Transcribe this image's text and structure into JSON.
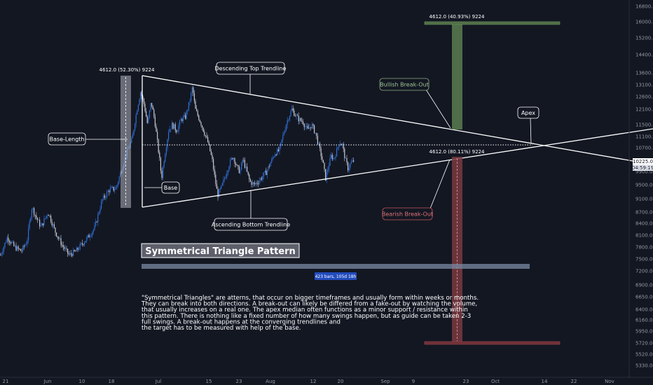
{
  "chart_data": {
    "type": "candlestick",
    "title": "Symmetrical Triangle Pattern",
    "y_ticks": [
      16800,
      16000,
      15200,
      14400,
      13600,
      13100,
      12600,
      12100,
      11500,
      11100,
      10700,
      9900,
      9500,
      9100,
      8700,
      8400,
      8100,
      7800,
      7500,
      7200,
      6900,
      6650,
      6400,
      6160,
      5950,
      5720,
      5520,
      5330
    ],
    "y_tick_labels": [
      "16800.0",
      "16000.0",
      "15200.0",
      "14400.0",
      "13600.0",
      "13100.0",
      "12600.0",
      "12100.0",
      "11500.0",
      "11100.0",
      "10700.0",
      "9900.0",
      "9500.0",
      "9100.0",
      "8700.0",
      "8400.0",
      "8100.0",
      "7800.0",
      "7500.0",
      "7200.0",
      "6900.0",
      "6650.0",
      "6400.0",
      "6160.0",
      "5950.0",
      "5720.0",
      "5520.0",
      "5330.0"
    ],
    "ylim": [
      5150,
      17100
    ],
    "x_tick_labels": [
      "21",
      "Jun",
      "10",
      "18",
      "Jul",
      "15",
      "23",
      "Aug",
      "12",
      "20",
      "Sep",
      "9",
      "23",
      "Oct",
      "14",
      "22",
      "Nov"
    ],
    "last_price": "10225.0",
    "countdown": "04:59:19",
    "annotations": {
      "base_length": "Base-Length",
      "base": "Base",
      "descending_top": "Descending Top Trendline",
      "ascending_bottom": "Ascending Bottom Trendline",
      "bullish_breakout": "Bullish Break-Out",
      "bearish_breakout": "Bearish Break-Out",
      "apex": "Apex",
      "base_measure": "4612.0 (52.30%) 9224",
      "bull_target": "4612.0 (40.93%) 9224",
      "bear_target": "4612.0 (80.11%) 9224",
      "bar_span": "423 bars, 105d 18h"
    },
    "description": [
      "\"Symmetrical Triangles\" are atterns, that occur on bigger timeframes and usually form within weeks or months.",
      "They can break into both directions. A break-out can likely be differed from a fake-out by watching the volume,",
      "that usually increases on a real one. The apex median often functions as a minor support / resistance within",
      "this pattern. There is nothing like a fixed number of how many swings happen, but as guide can be taken 2-3",
      "full swings. A break-out happens at the converging trendlines and",
      "the target has to be measured with help of the base."
    ],
    "price_path": [
      [
        0,
        7600
      ],
      [
        10,
        8050
      ],
      [
        20,
        7800
      ],
      [
        30,
        7700
      ],
      [
        38,
        7950
      ],
      [
        45,
        8850
      ],
      [
        50,
        8600
      ],
      [
        58,
        8300
      ],
      [
        68,
        8700
      ],
      [
        78,
        8200
      ],
      [
        88,
        7850
      ],
      [
        98,
        7600
      ],
      [
        108,
        7700
      ],
      [
        115,
        7850
      ],
      [
        125,
        8050
      ],
      [
        135,
        8300
      ],
      [
        145,
        9050
      ],
      [
        155,
        9350
      ],
      [
        165,
        9400
      ],
      [
        172,
        9900
      ],
      [
        180,
        10500
      ],
      [
        188,
        11000
      ],
      [
        195,
        12100
      ],
      [
        200,
        12800
      ],
      [
        205,
        12300
      ],
      [
        210,
        11500
      ],
      [
        215,
        12400
      ],
      [
        220,
        11700
      ],
      [
        225,
        10700
      ],
      [
        230,
        9700
      ],
      [
        235,
        10500
      ],
      [
        240,
        11300
      ],
      [
        245,
        11500
      ],
      [
        252,
        11300
      ],
      [
        258,
        11700
      ],
      [
        264,
        11800
      ],
      [
        270,
        12400
      ],
      [
        274,
        13000
      ],
      [
        278,
        12100
      ],
      [
        284,
        11700
      ],
      [
        290,
        11300
      ],
      [
        296,
        10900
      ],
      [
        302,
        10300
      ],
      [
        306,
        9700
      ],
      [
        310,
        9200
      ],
      [
        315,
        9400
      ],
      [
        320,
        9700
      ],
      [
        326,
        10100
      ],
      [
        332,
        10400
      ],
      [
        338,
        10000
      ],
      [
        342,
        9900
      ],
      [
        346,
        10300
      ],
      [
        350,
        10000
      ],
      [
        356,
        9600
      ],
      [
        362,
        9500
      ],
      [
        368,
        9600
      ],
      [
        374,
        9750
      ],
      [
        380,
        9900
      ],
      [
        386,
        10200
      ],
      [
        392,
        10500
      ],
      [
        398,
        10600
      ],
      [
        404,
        11200
      ],
      [
        410,
        11700
      ],
      [
        416,
        12100
      ],
      [
        420,
        11900
      ],
      [
        426,
        11700
      ],
      [
        432,
        11600
      ],
      [
        438,
        11300
      ],
      [
        444,
        11500
      ],
      [
        450,
        11200
      ],
      [
        456,
        10600
      ],
      [
        460,
        10200
      ],
      [
        464,
        9700
      ],
      [
        468,
        10050
      ],
      [
        472,
        10400
      ],
      [
        476,
        10300
      ],
      [
        480,
        10600
      ],
      [
        484,
        10900
      ],
      [
        488,
        10800
      ],
      [
        492,
        10300
      ],
      [
        496,
        10000
      ],
      [
        500,
        10150
      ],
      [
        505,
        10250
      ]
    ]
  }
}
